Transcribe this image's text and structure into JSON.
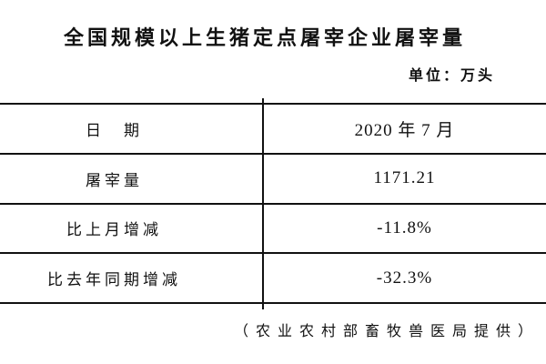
{
  "page": {
    "title": "全国规模以上生猪定点屠宰企业屠宰量",
    "unit_label": "单位：万头",
    "source_note": "（农业农村部畜牧兽医局提供）"
  },
  "table": {
    "rows": [
      {
        "label": "日　期",
        "value": "2020 年 7 月"
      },
      {
        "label": "屠宰量",
        "value": "1171.21"
      },
      {
        "label": "比上月增减",
        "value": "-11.8%"
      },
      {
        "label": "比去年同期增减",
        "value": "-32.3%"
      }
    ]
  },
  "colors": {
    "background": "#ffffff",
    "text": "#111111",
    "border": "#111111"
  }
}
